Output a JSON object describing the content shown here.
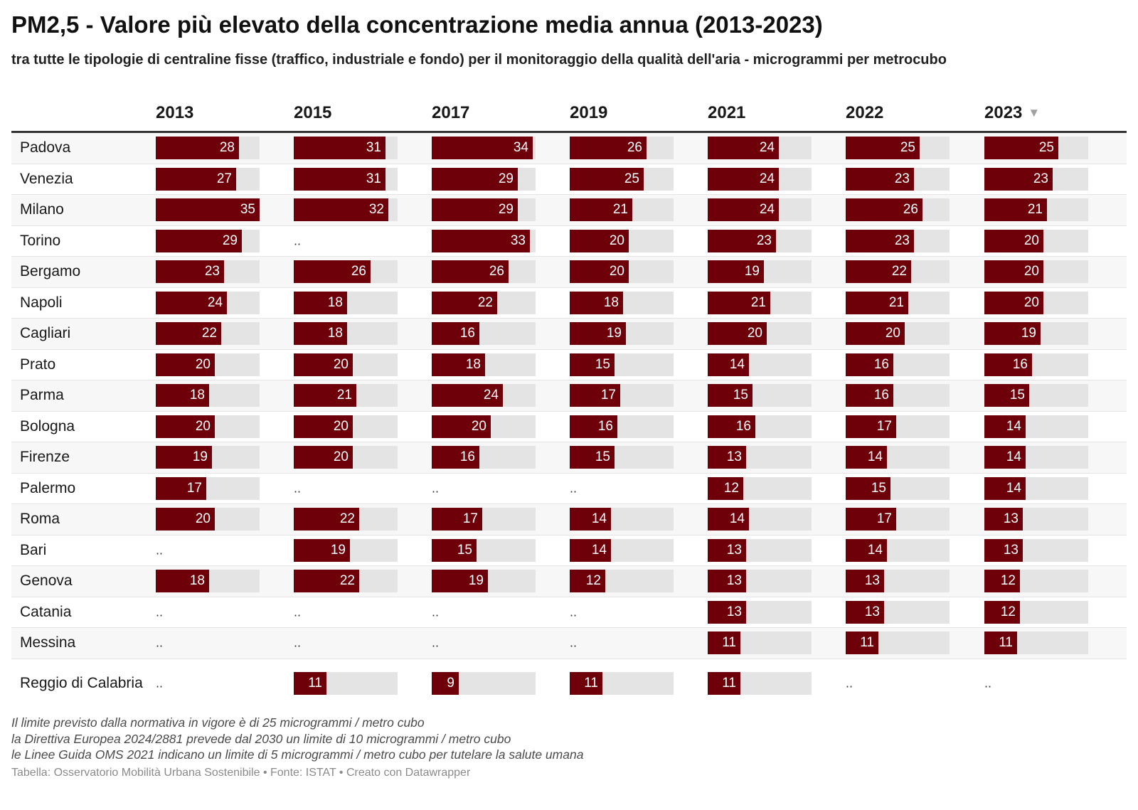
{
  "title": "PM2,5 - Valore più elevato della concentrazione media annua (2013-2023)",
  "subtitle": "tra tutte le tipologie di centraline fisse (traffico, industriale e fondo) per il monitoraggio della qualità dell'aria - microgrammi per metrocubo",
  "sort_icon": "sort-descending-icon",
  "colors": {
    "bar": "#6e0009",
    "track": "#e4e4e4",
    "row_shade": "#f7f7f7"
  },
  "na_text": "..",
  "chart_data": {
    "type": "table",
    "title": "PM2,5 - Valore più elevato della concentrazione media annua (2013-2023)",
    "bar_max": 35,
    "columns": [
      "2013",
      "2015",
      "2017",
      "2019",
      "2021",
      "2022",
      "2023"
    ],
    "rows": [
      {
        "city": "Padova",
        "values": [
          28,
          31,
          34,
          26,
          24,
          25,
          25
        ]
      },
      {
        "city": "Venezia",
        "values": [
          27,
          31,
          29,
          25,
          24,
          23,
          23
        ]
      },
      {
        "city": "Milano",
        "values": [
          35,
          32,
          29,
          21,
          24,
          26,
          21
        ]
      },
      {
        "city": "Torino",
        "values": [
          29,
          null,
          33,
          20,
          23,
          23,
          20
        ]
      },
      {
        "city": "Bergamo",
        "values": [
          23,
          26,
          26,
          20,
          19,
          22,
          20
        ]
      },
      {
        "city": "Napoli",
        "values": [
          24,
          18,
          22,
          18,
          21,
          21,
          20
        ]
      },
      {
        "city": "Cagliari",
        "values": [
          22,
          18,
          16,
          19,
          20,
          20,
          19
        ]
      },
      {
        "city": "Prato",
        "values": [
          20,
          20,
          18,
          15,
          14,
          16,
          16
        ]
      },
      {
        "city": "Parma",
        "values": [
          18,
          21,
          24,
          17,
          15,
          16,
          15
        ]
      },
      {
        "city": "Bologna",
        "values": [
          20,
          20,
          20,
          16,
          16,
          17,
          14
        ]
      },
      {
        "city": "Firenze",
        "values": [
          19,
          20,
          16,
          15,
          13,
          14,
          14
        ]
      },
      {
        "city": "Palermo",
        "values": [
          17,
          null,
          null,
          null,
          12,
          15,
          14
        ]
      },
      {
        "city": "Roma",
        "values": [
          20,
          22,
          17,
          14,
          14,
          17,
          13
        ]
      },
      {
        "city": "Bari",
        "values": [
          null,
          19,
          15,
          14,
          13,
          14,
          13
        ]
      },
      {
        "city": "Genova",
        "values": [
          18,
          22,
          19,
          12,
          13,
          13,
          12
        ]
      },
      {
        "city": "Catania",
        "values": [
          null,
          null,
          null,
          null,
          13,
          13,
          12
        ]
      },
      {
        "city": "Messina",
        "values": [
          null,
          null,
          null,
          null,
          11,
          11,
          11
        ]
      },
      {
        "city": "Reggio di Calabria",
        "values": [
          null,
          11,
          9,
          11,
          11,
          null,
          null
        ]
      }
    ]
  },
  "notes": [
    "Il limite previsto dalla normativa in vigore è di 25 microgrammi / metro cubo",
    "la Direttiva Europea 2024/2881 prevede dal 2030 un limite di 10 microgrammi / metro cubo",
    "le Linee Guida OMS 2021 indicano un limite di 5 microgrammi / metro cubo per tutelare la salute umana"
  ],
  "footer": "Tabella: Osservatorio Mobilità Urbana Sostenibile • Fonte: ISTAT • Creato con Datawrapper"
}
